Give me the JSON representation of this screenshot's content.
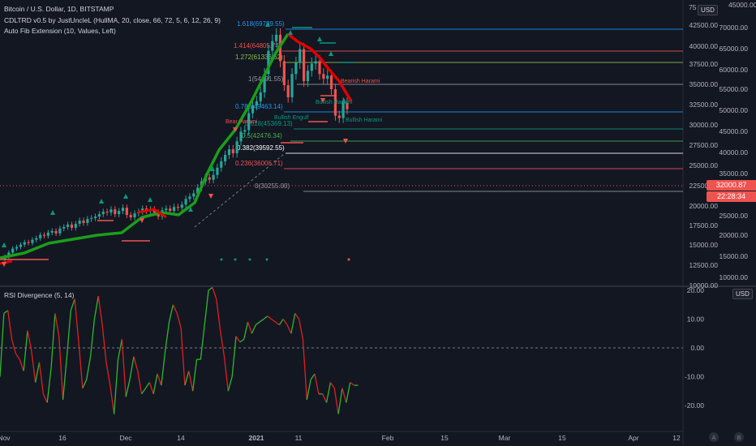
{
  "header": {
    "symbol_line": "Bitcoin / U.S. Dollar, 1D, BITSTAMP",
    "indicator1": "CDLTRD v0.5 by JustUncleL (HullMA, 20, close, 66, 72, 5, 6, 12, 26, 9)",
    "indicator2": "Auto Fib Extension (10, Values, Left)"
  },
  "currency_button": "USD",
  "currency_button_2": "USD",
  "price_axis": {
    "right_col": [
      "70000.00",
      "65000.00",
      "60000.00",
      "55000.00",
      "50000.00",
      "45000.00",
      "40000.00",
      "35000.00",
      "30000.00",
      "25000.00",
      "20000.00",
      "15000.00",
      "10000.00"
    ],
    "left_col": [
      "42500.00",
      "40000.00",
      "37500.00",
      "35000.00",
      "32500.00",
      "30000.00",
      "27500.00",
      "25000.00",
      "22500.00",
      "20000.00",
      "17500.00",
      "15000.00",
      "12500.00",
      "10000.00"
    ],
    "top_partial_left": "75",
    "top_partial_right": "45000.00"
  },
  "last_price": "32000.87",
  "countdown": "22:28:34",
  "fib_levels": [
    {
      "label": "1.618(69789.55)",
      "color": "#2196f3"
    },
    {
      "label": "1.414(64805.74)",
      "color": "#ef5350"
    },
    {
      "label": "1.272(61336.62)",
      "color": "#8bc34a"
    },
    {
      "label": "1(54691.55)",
      "color": "#9598a1"
    },
    {
      "label": "0.786(49463.14)",
      "color": "#2196f3"
    },
    {
      "label": "0.618(45369.13)",
      "color": "#089981"
    },
    {
      "label": "0.5(42476.34)",
      "color": "#4caf50"
    },
    {
      "label": "0.382(39592.55)",
      "color": "#ffffff"
    },
    {
      "label": "0.236(36006.71)",
      "color": "#ef5350"
    },
    {
      "label": "0(30255.00)",
      "color": "#9598a1"
    }
  ],
  "rsi_panel": {
    "title": "RSI Divergence (5, 14)",
    "ticks": [
      "20.00",
      "10.00",
      "0.00",
      "-10.00",
      "-20.00"
    ],
    "series": [
      {
        "name": "rsi",
        "values": [
          -10,
          12,
          13,
          3,
          -2,
          -4,
          -8,
          6,
          -1,
          -12,
          -5,
          -16,
          -19,
          -7,
          12,
          4,
          -18,
          -3,
          13,
          17,
          2,
          -14,
          -11,
          -3,
          10,
          18,
          8,
          -5,
          -13,
          -23,
          -4,
          3,
          -17,
          -11,
          -3,
          -8,
          -16,
          -14,
          -12,
          -16,
          -9,
          -13,
          -1,
          9,
          15,
          12,
          7,
          -13,
          -8,
          -15,
          -4,
          -4,
          8,
          20,
          21,
          17,
          6,
          -3,
          -15,
          -10,
          4,
          2,
          3,
          9,
          5,
          8,
          9,
          10,
          11,
          10,
          9,
          8,
          10,
          8,
          5,
          12,
          10,
          3,
          -18,
          -11,
          -9,
          -16,
          -16,
          -19,
          -12,
          -14,
          -23,
          -14,
          -19,
          -12,
          -13,
          -13
        ]
      }
    ]
  },
  "time_axis": [
    "Nov",
    "16",
    "Dec",
    "14",
    "2021",
    "11",
    "Feb",
    "15",
    "Mar",
    "15",
    "Apr",
    "12"
  ],
  "bottom_icons": {
    "left": "A",
    "right": "B"
  },
  "colors": {
    "bg": "#131722",
    "up": "#26a69a",
    "down": "#ef5350",
    "trend_up": "#1b9e1b",
    "trend_down": "#e00000"
  },
  "signal_labels": [
    "Bear Harami",
    "Bullish Engulf",
    "Bullish Harami",
    "Bearish Harami",
    "Bullish Harami"
  ]
}
